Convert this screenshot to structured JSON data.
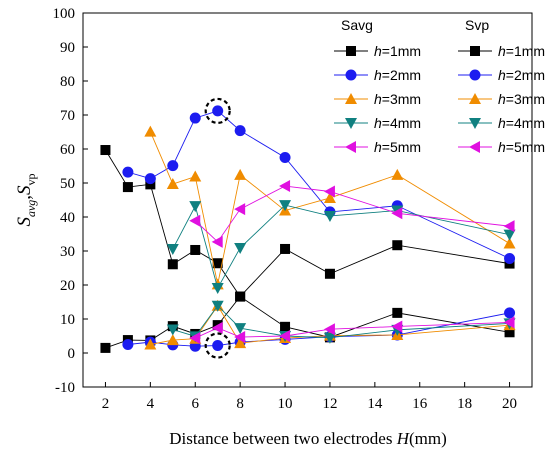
{
  "chart_data": {
    "type": "line",
    "xlabel_prefix": "Distance between two electrodes ",
    "xlabel_var": "H",
    "xlabel_suffix": "(mm)",
    "ylabel": {
      "s1": "S",
      "sub1": "avg",
      "sep": ",",
      "s2": "S",
      "sub2": "vp"
    },
    "xlim": [
      1,
      21
    ],
    "ylim": [
      -10,
      100
    ],
    "xticks": [
      2,
      4,
      6,
      8,
      10,
      12,
      14,
      16,
      18,
      20
    ],
    "yticks": [
      -10,
      0,
      10,
      20,
      30,
      40,
      50,
      60,
      70,
      80,
      90,
      100
    ],
    "grid": false,
    "legend_position": "top-right",
    "legend_titles": [
      "Savg",
      "Svp"
    ],
    "groups": [
      {
        "name": "Savg",
        "series": [
          {
            "label_var": "h",
            "label_rest": "=1mm",
            "color": "#000000",
            "marker": "square",
            "x": [
              2,
              3,
              4,
              5,
              6,
              7,
              8,
              10,
              12,
              15,
              20
            ],
            "y": [
              59.7,
              48.8,
              49.6,
              26.1,
              30.3,
              26.4,
              16.6,
              30.6,
              23.3,
              31.7,
              26.3
            ]
          },
          {
            "label_var": "h",
            "label_rest": "=2mm",
            "color": "#1c1cf0",
            "marker": "circle",
            "x": [
              3,
              4,
              5,
              6,
              7,
              8,
              10,
              12,
              15,
              20
            ],
            "y": [
              53.2,
              51.3,
              55.1,
              69.1,
              71.2,
              65.4,
              57.5,
              41.5,
              43.3,
              27.8
            ]
          },
          {
            "label_var": "h",
            "label_rest": "=3mm",
            "color": "#f08c00",
            "marker": "triangle-up",
            "x": [
              4,
              5,
              6,
              7,
              8,
              10,
              12,
              15,
              20
            ],
            "y": [
              65.1,
              49.7,
              51.9,
              20.2,
              52.4,
              41.9,
              45.6,
              52.4,
              32.2
            ]
          },
          {
            "label_var": "h",
            "label_rest": "=4mm",
            "color": "#108080",
            "marker": "triangle-down",
            "x": [
              5,
              6,
              7,
              8,
              10,
              12,
              15,
              20
            ],
            "y": [
              30.6,
              43.2,
              19.1,
              30.9,
              43.5,
              40.3,
              41.9,
              34.8
            ]
          },
          {
            "label_var": "h",
            "label_rest": "=5mm",
            "color": "#e010e0",
            "marker": "triangle-left",
            "x": [
              6,
              7,
              8,
              10,
              12,
              15,
              20
            ],
            "y": [
              38.9,
              32.7,
              42.3,
              49.1,
              47.5,
              41.1,
              37.3
            ]
          }
        ]
      },
      {
        "name": "Svp",
        "series": [
          {
            "label_var": "h",
            "label_rest": "=1mm",
            "color": "#000000",
            "marker": "square",
            "x": [
              2,
              3,
              4,
              5,
              6,
              7,
              8,
              10,
              12,
              15,
              20
            ],
            "y": [
              1.5,
              3.8,
              3.7,
              7.9,
              5.6,
              8.2,
              16.6,
              7.7,
              4.6,
              11.8,
              6.1
            ]
          },
          {
            "label_var": "h",
            "label_rest": "=2mm",
            "color": "#1c1cf0",
            "marker": "circle",
            "x": [
              3,
              4,
              5,
              6,
              7,
              8,
              10,
              12,
              15,
              20
            ],
            "y": [
              2.5,
              3.2,
              2.4,
              2.0,
              2.2,
              3.2,
              4.0,
              4.8,
              5.3,
              11.8
            ]
          },
          {
            "label_var": "h",
            "label_rest": "=3mm",
            "color": "#f08c00",
            "marker": "triangle-up",
            "x": [
              4,
              5,
              6,
              7,
              8,
              10,
              12,
              15,
              20
            ],
            "y": [
              2.5,
              3.8,
              4.2,
              13.9,
              2.9,
              4.4,
              5.1,
              5.3,
              8.2
            ]
          },
          {
            "label_var": "h",
            "label_rest": "=4mm",
            "color": "#108080",
            "marker": "triangle-down",
            "x": [
              5,
              6,
              7,
              8,
              10,
              12,
              15,
              20
            ],
            "y": [
              6.9,
              4.9,
              13.9,
              7.3,
              5.0,
              4.5,
              6.8,
              8.7
            ]
          },
          {
            "label_var": "h",
            "label_rest": "=5mm",
            "color": "#e010e0",
            "marker": "triangle-left",
            "x": [
              6,
              7,
              8,
              10,
              12,
              15,
              20
            ],
            "y": [
              4.4,
              7.4,
              4.7,
              5.0,
              7.0,
              7.8,
              9.0
            ]
          }
        ]
      }
    ],
    "highlight_circles": [
      {
        "x": 7,
        "y": 71.2
      },
      {
        "x": 7,
        "y": 2.2
      }
    ]
  }
}
